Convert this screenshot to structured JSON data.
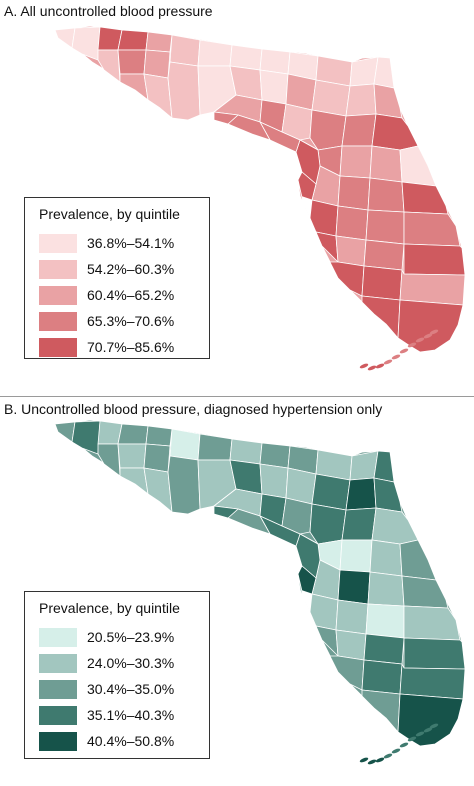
{
  "panels": [
    {
      "id": "A",
      "title": "A. All uncontrolled blood pressure",
      "legend": {
        "title": "Prevalence, by quintile",
        "items": [
          {
            "label": "36.8%–54.1%",
            "color": "#fbe1e1"
          },
          {
            "label": "54.2%–60.3%",
            "color": "#f3c1c2"
          },
          {
            "label": "60.4%–65.2%",
            "color": "#e9a2a4"
          },
          {
            "label": "65.3%–70.6%",
            "color": "#dc7f82"
          },
          {
            "label": "70.7%–85.6%",
            "color": "#cf5a5f"
          }
        ]
      }
    },
    {
      "id": "B",
      "title": "B. Uncontrolled blood pressure, diagnosed hypertension only",
      "legend": {
        "title": "Prevalence, by quintile",
        "items": [
          {
            "label": "20.5%–23.9%",
            "color": "#d6efe9"
          },
          {
            "label": "24.0%–30.3%",
            "color": "#a2c6bf"
          },
          {
            "label": "30.4%–35.0%",
            "color": "#6f9d94"
          },
          {
            "label": "35.1%–40.3%",
            "color": "#3f7a6f"
          },
          {
            "label": "40.4%–50.8%",
            "color": "#16534a"
          }
        ]
      }
    }
  ],
  "map_fill_quintiles": {
    "A": [
      0,
      0,
      4,
      4,
      2,
      1,
      3,
      2,
      2,
      1,
      1,
      0,
      0,
      0,
      0,
      1,
      0,
      0,
      1,
      0,
      1,
      0,
      2,
      1,
      1,
      2,
      2,
      3,
      1,
      3,
      3,
      4,
      3,
      2,
      2,
      0,
      2,
      3,
      3,
      4,
      4,
      3,
      3,
      3,
      4,
      2,
      3,
      4,
      4,
      4,
      2,
      4,
      4,
      4,
      3,
      3,
      4,
      2,
      3
    ],
    "B": [
      2,
      3,
      1,
      2,
      2,
      2,
      1,
      2,
      1,
      1,
      0,
      2,
      1,
      2,
      2,
      1,
      1,
      3,
      2,
      1,
      3,
      1,
      1,
      3,
      4,
      3,
      1,
      3,
      2,
      3,
      3,
      1,
      0,
      0,
      1,
      2,
      1,
      4,
      1,
      2,
      1,
      1,
      0,
      1,
      2,
      1,
      3,
      3,
      2,
      3,
      3,
      2,
      4,
      3,
      3,
      2,
      4,
      1,
      3
    ]
  }
}
